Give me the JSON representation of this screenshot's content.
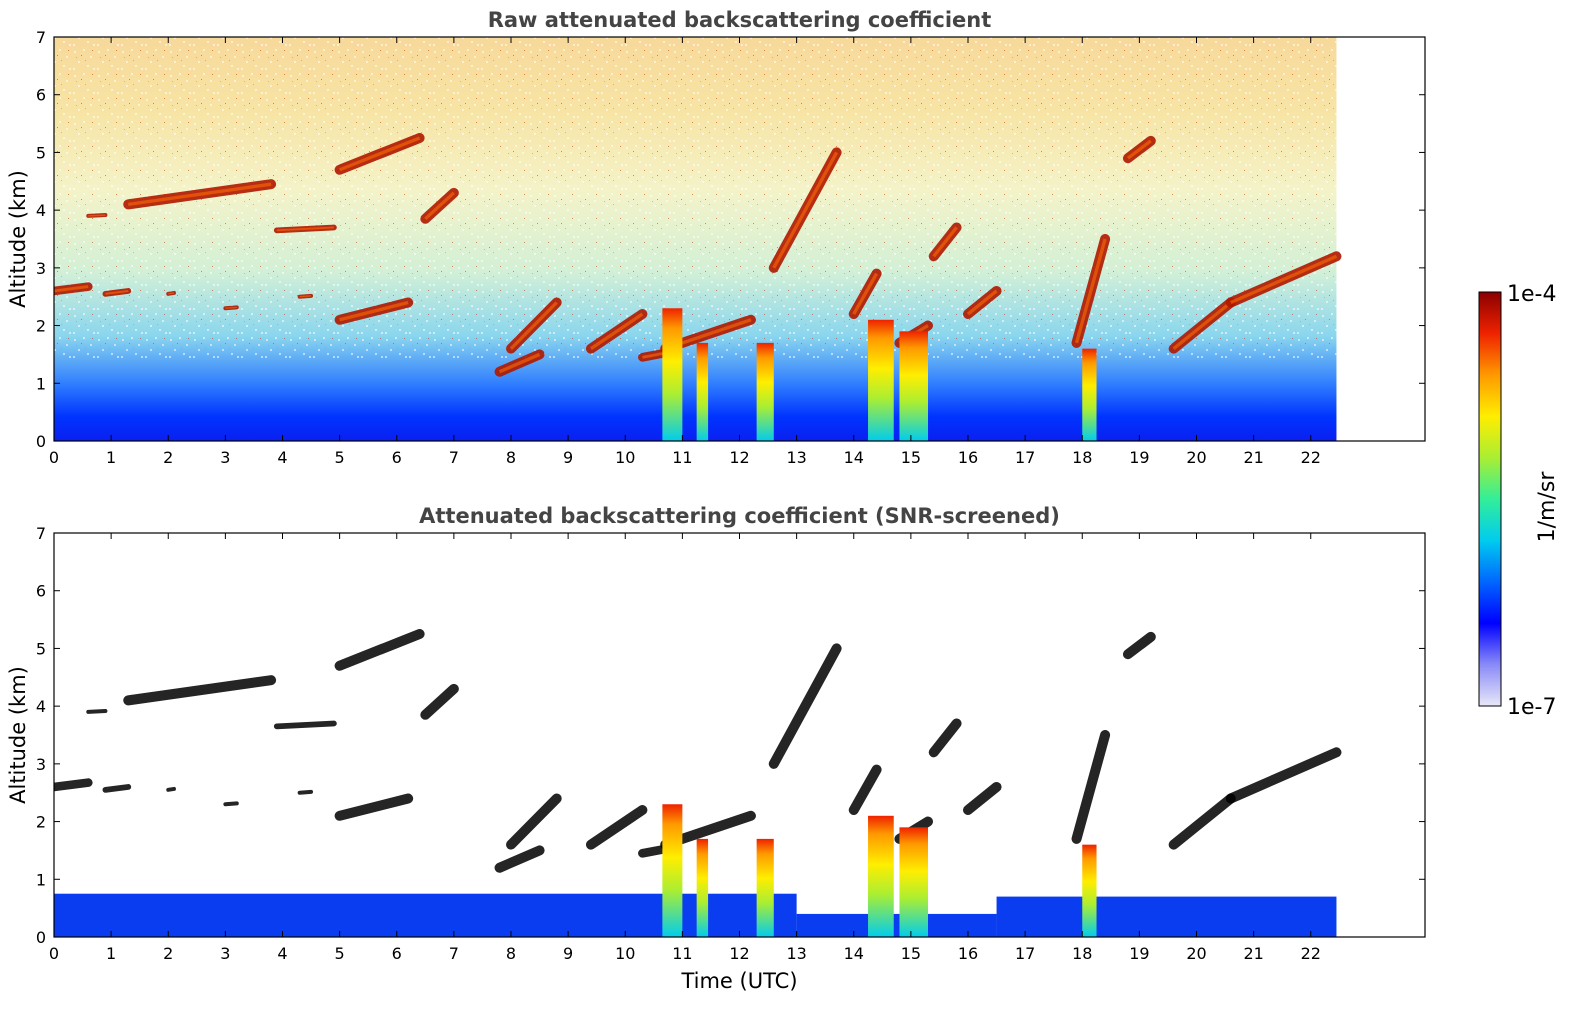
{
  "colors": {
    "title": "#444444",
    "cloud_edge": "#000000",
    "colormap": [
      "#e8e8f8",
      "#8a8af8",
      "#0000ff",
      "#0066ff",
      "#00ccee",
      "#33ee99",
      "#aaee33",
      "#ffee00",
      "#ff9900",
      "#ee2200",
      "#8b0000"
    ]
  },
  "chart_data": [
    {
      "type": "heatmap",
      "title": "Raw attenuated backscattering coefficient",
      "xlabel": "",
      "ylabel": "Altitude (km)",
      "xlim": [
        0,
        24
      ],
      "ylim": [
        0,
        7
      ],
      "data_end_time": 22.45,
      "xticks": [
        "0",
        "1",
        "2",
        "3",
        "4",
        "5",
        "6",
        "7",
        "8",
        "9",
        "10",
        "11",
        "12",
        "13",
        "14",
        "15",
        "16",
        "17",
        "18",
        "19",
        "20",
        "21",
        "22"
      ],
      "yticks": [
        "0",
        "1",
        "2",
        "3",
        "4",
        "5",
        "6",
        "7"
      ],
      "cloud_layers": [
        {
          "t": [
            0.0,
            0.6
          ],
          "alt": [
            2.6,
            2.75
          ]
        },
        {
          "t": [
            0.6,
            0.9
          ],
          "alt": [
            3.9,
            3.95
          ]
        },
        {
          "t": [
            0.9,
            1.3
          ],
          "alt": [
            2.55,
            2.65
          ]
        },
        {
          "t": [
            1.3,
            3.8
          ],
          "alt": [
            4.1,
            4.45
          ]
        },
        {
          "t": [
            2.0,
            2.1
          ],
          "alt": [
            2.55,
            2.6
          ]
        },
        {
          "t": [
            3.0,
            3.2
          ],
          "alt": [
            2.3,
            2.35
          ]
        },
        {
          "t": [
            3.9,
            4.9
          ],
          "alt": [
            3.65,
            3.75
          ]
        },
        {
          "t": [
            4.3,
            4.5
          ],
          "alt": [
            2.5,
            2.55
          ]
        },
        {
          "t": [
            5.0,
            6.2
          ],
          "alt": [
            2.1,
            2.4
          ]
        },
        {
          "t": [
            5.0,
            6.4
          ],
          "alt": [
            4.7,
            5.25
          ]
        },
        {
          "t": [
            6.5,
            7.0
          ],
          "alt": [
            3.85,
            4.3
          ]
        },
        {
          "t": [
            7.8,
            8.5
          ],
          "alt": [
            1.2,
            1.5
          ]
        },
        {
          "t": [
            8.0,
            8.8
          ],
          "alt": [
            1.6,
            2.4
          ]
        },
        {
          "t": [
            9.4,
            10.3
          ],
          "alt": [
            1.6,
            2.2
          ]
        },
        {
          "t": [
            10.3,
            10.7
          ],
          "alt": [
            1.45,
            1.6
          ]
        },
        {
          "t": [
            10.7,
            12.2
          ],
          "alt": [
            1.6,
            2.1
          ]
        },
        {
          "t": [
            12.6,
            13.7
          ],
          "alt": [
            3.0,
            5.0
          ]
        },
        {
          "t": [
            14.0,
            14.4
          ],
          "alt": [
            2.2,
            2.9
          ]
        },
        {
          "t": [
            14.8,
            15.3
          ],
          "alt": [
            1.7,
            2.0
          ]
        },
        {
          "t": [
            15.4,
            15.8
          ],
          "alt": [
            3.2,
            3.7
          ]
        },
        {
          "t": [
            16.0,
            16.5
          ],
          "alt": [
            2.2,
            2.6
          ]
        },
        {
          "t": [
            17.9,
            18.4
          ],
          "alt": [
            1.7,
            3.5
          ]
        },
        {
          "t": [
            18.8,
            19.2
          ],
          "alt": [
            4.9,
            5.2
          ]
        },
        {
          "t": [
            19.6,
            20.6
          ],
          "alt": [
            1.6,
            2.4
          ]
        },
        {
          "t": [
            20.6,
            22.45
          ],
          "alt": [
            2.4,
            3.2
          ]
        }
      ],
      "precip_columns": [
        {
          "t": [
            10.65,
            11.0
          ],
          "top": 2.3
        },
        {
          "t": [
            11.25,
            11.45
          ],
          "top": 1.7
        },
        {
          "t": [
            12.3,
            12.6
          ],
          "top": 1.7
        },
        {
          "t": [
            14.25,
            14.7
          ],
          "top": 2.1
        },
        {
          "t": [
            14.8,
            15.3
          ],
          "top": 1.9
        },
        {
          "t": [
            18.0,
            18.25
          ],
          "top": 1.6
        }
      ]
    },
    {
      "type": "heatmap",
      "title": "Attenuated backscattering coefficient (SNR-screened)",
      "xlabel": "Time (UTC)",
      "ylabel": "Altitude (km)",
      "xlim": [
        0,
        24
      ],
      "ylim": [
        0,
        7
      ],
      "xticks": [
        "0",
        "1",
        "2",
        "3",
        "4",
        "5",
        "6",
        "7",
        "8",
        "9",
        "10",
        "11",
        "12",
        "13",
        "14",
        "15",
        "16",
        "17",
        "18",
        "19",
        "20",
        "21",
        "22"
      ],
      "yticks": [
        "0",
        "1",
        "2",
        "3",
        "4",
        "5",
        "6",
        "7"
      ]
    }
  ],
  "colorbar": {
    "max_label": "1e-4",
    "min_label": "1e-7",
    "unit_label": "1/m/sr",
    "range": [
      1e-07,
      0.0001
    ],
    "scale": "log"
  }
}
